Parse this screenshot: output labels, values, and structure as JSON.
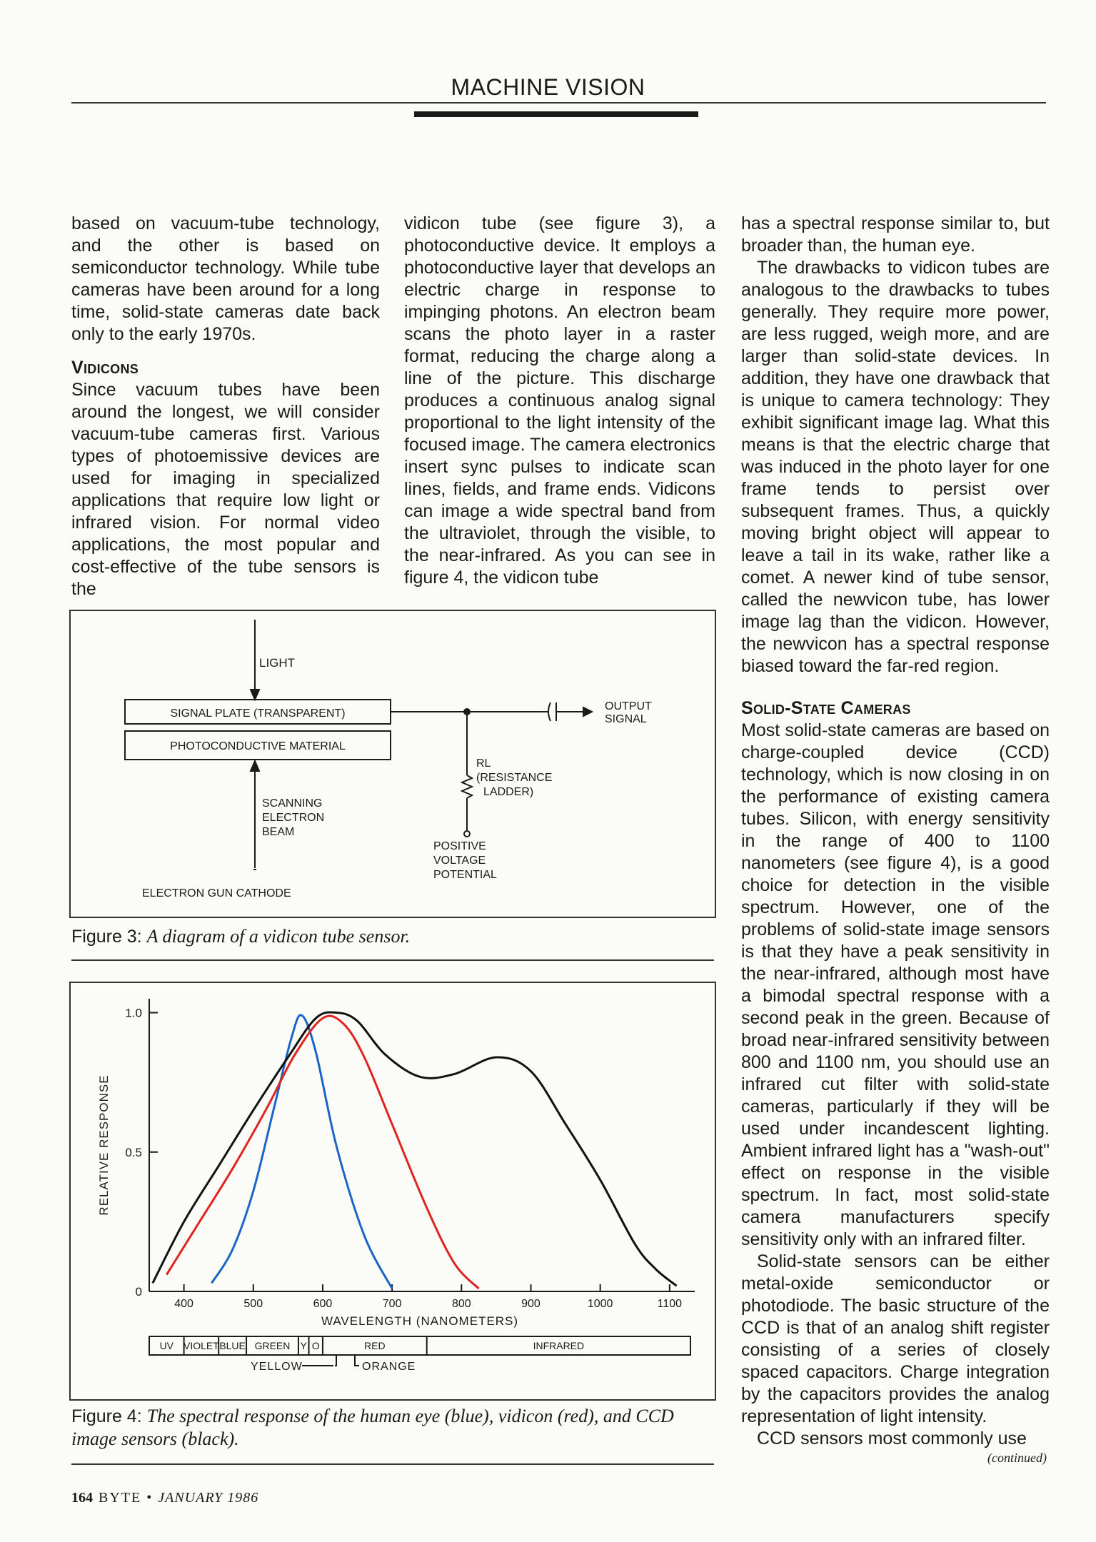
{
  "header": {
    "section": "MACHINE VISION"
  },
  "col1": {
    "p1": "based on vacuum-tube technology, and the other is based on semiconductor technology. While tube cameras have been around for a long time, solid-state cameras date back only to the early 1970s.",
    "h1": "Vidicons",
    "p2": "Since vacuum tubes have been around the longest, we will consider vacuum-tube cameras first. Various types of photoemissive devices are used for imaging in specialized applications that require low light or infrared vision. For normal video applications, the most popular and cost-effective of the tube sensors is the"
  },
  "col2": {
    "p1": "vidicon tube (see figure 3), a photoconductive device. It employs a photoconductive layer that develops an electric charge in response to impinging photons. An electron beam scans the photo layer in a raster format, reducing the charge along a line of the picture. This discharge produces a continuous analog signal proportional to the light intensity of the focused image. The camera electronics insert sync pulses to indicate scan lines, fields, and frame ends. Vidicons can image a wide spectral band from the ultraviolet, through the visible, to the near-infrared. As you can see in figure 4, the vidicon tube"
  },
  "col3": {
    "p1": "has a spectral response similar to, but broader than, the human eye.",
    "p2": "The drawbacks to vidicon tubes are analogous to the drawbacks to tubes generally. They require more power, are less rugged, weigh more, and are larger than solid-state devices. In addition, they have one drawback that is unique to camera technology: They exhibit significant image lag. What this means is that the electric charge that was induced in the photo layer for one frame tends to persist over subsequent frames. Thus, a quickly moving bright object will appear to leave a tail in its wake, rather like a comet. A newer kind of tube sensor, called the newvicon tube, has lower image lag than the vidicon. However, the newvicon has a spectral response biased toward the far-red region.",
    "h1": "Solid-State Cameras",
    "p3": "Most solid-state cameras are based on charge-coupled device (CCD) technology, which is now closing in on the performance of existing camera tubes. Silicon, with energy sensitivity in the range of 400 to 1100 nanometers (see figure 4), is a good choice for detection in the visible spectrum. However, one of the problems of solid-state image sensors is that they have a peak sensitivity in the near-infrared, although most have a bimodal spectral response with a second peak in the green. Because of broad near-infrared sensitivity between 800 and 1100 nm, you should use an infrared cut filter with solid-state cameras, particularly if they will be used under incandescent lighting. Ambient infrared light has a \"wash-out\" effect on response in the visible spectrum. In fact, most solid-state camera manufacturers specify sensitivity only with an infrared filter.",
    "p4": "Solid-state sensors can be either metal-oxide semiconductor or photodiode. The basic structure of the CCD is that of an analog shift register consisting of a series of closely spaced capacitors. Charge integration by the capacitors provides the analog representation of light intensity.",
    "p5": "CCD sensors most commonly use",
    "continued": "(continued)"
  },
  "fig3": {
    "light": "LIGHT",
    "signal_plate": "SIGNAL PLATE (TRANSPARENT)",
    "photoconductive": "PHOTOCONDUCTIVE MATERIAL",
    "output1": "OUTPUT",
    "output2": "SIGNAL",
    "rl1": "RL",
    "rl2": "(RESISTANCE",
    "rl3": "LADDER)",
    "scan1": "SCANNING",
    "scan2": "ELECTRON",
    "scan3": "BEAM",
    "pos1": "POSITIVE",
    "pos2": "VOLTAGE",
    "pos3": "POTENTIAL",
    "cathode": "ELECTRON GUN CATHODE",
    "caption_label": "Figure 3:",
    "caption_text": "A diagram of a vidicon tube sensor."
  },
  "fig4": {
    "caption_label": "Figure 4:",
    "caption_text": "The spectral response of the human eye (blue), vidicon (red), and CCD image sensors (black).",
    "bands": [
      {
        "label": "UV",
        "from": 350,
        "to": 400
      },
      {
        "label": "VIOLET",
        "from": 400,
        "to": 450
      },
      {
        "label": "BLUE",
        "from": 450,
        "to": 490
      },
      {
        "label": "GREEN",
        "from": 490,
        "to": 565
      },
      {
        "label": "Y",
        "from": 565,
        "to": 580
      },
      {
        "label": "O",
        "from": 580,
        "to": 600
      },
      {
        "label": "RED",
        "from": 600,
        "to": 750
      },
      {
        "label": "INFRARED",
        "from": 750,
        "to": 1130
      }
    ],
    "yellow_label": "YELLOW",
    "orange_label": "ORANGE"
  },
  "chart_data": {
    "type": "line",
    "xlabel": "WAVELENGTH (NANOMETERS)",
    "ylabel": "RELATIVE RESPONSE",
    "xlim": [
      350,
      1130
    ],
    "ylim": [
      0,
      1.05
    ],
    "xticks": [
      400,
      500,
      600,
      700,
      800,
      900,
      1000,
      1100
    ],
    "yticks": [
      0,
      0.5,
      1.0
    ],
    "ytick_labels": [
      "0",
      "0.5",
      "1.0"
    ],
    "grid": false,
    "series": [
      {
        "color": "#1a66c8",
        "x": [
          440,
          470,
          500,
          530,
          555,
          570,
          590,
          620,
          660,
          700
        ],
        "y": [
          0.03,
          0.15,
          0.36,
          0.66,
          0.91,
          0.99,
          0.86,
          0.52,
          0.2,
          0.01
        ]
      },
      {
        "color": "#e0231e",
        "x": [
          375,
          420,
          470,
          520,
          560,
          600,
          630,
          660,
          700,
          750,
          790,
          825
        ],
        "y": [
          0.06,
          0.24,
          0.44,
          0.66,
          0.85,
          0.98,
          0.96,
          0.84,
          0.6,
          0.3,
          0.1,
          0.01
        ]
      },
      {
        "color": "#111111",
        "x": [
          355,
          400,
          450,
          500,
          550,
          590,
          620,
          650,
          690,
          740,
          790,
          850,
          900,
          950,
          1000,
          1050,
          1080,
          1110
        ],
        "y": [
          0.03,
          0.25,
          0.45,
          0.65,
          0.84,
          0.98,
          1.0,
          0.97,
          0.85,
          0.77,
          0.78,
          0.84,
          0.79,
          0.6,
          0.4,
          0.17,
          0.08,
          0.02
        ]
      }
    ]
  }
}
